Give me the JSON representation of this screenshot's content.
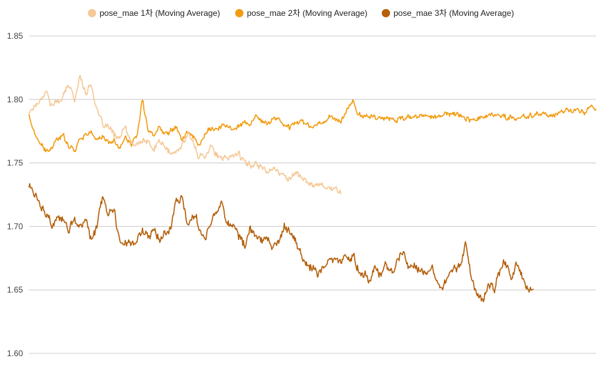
{
  "chart_data": {
    "type": "line",
    "title": "",
    "xlabel": "",
    "ylabel": "",
    "ylim": [
      1.6,
      1.85
    ],
    "yticks": [
      "1.85",
      "1.80",
      "1.75",
      "1.70",
      "1.65",
      "1.60"
    ],
    "ytick_values": [
      1.85,
      1.8,
      1.75,
      1.7,
      1.65,
      1.6
    ],
    "grid": true,
    "legend_position": "top",
    "x_range": [
      0,
      100
    ],
    "series": [
      {
        "name": "pose_mae 1차 (Moving Average)",
        "color": "#f5c998",
        "x": [
          0,
          2,
          3,
          4,
          5,
          6,
          7,
          8,
          9,
          10,
          11,
          12,
          13,
          14,
          15,
          16,
          17,
          18,
          19,
          20,
          21,
          22,
          23,
          24,
          25,
          26,
          27,
          28,
          29,
          30,
          31,
          32,
          33,
          34,
          35,
          36,
          37,
          38,
          39,
          40,
          41,
          42,
          43,
          44,
          45,
          46,
          47,
          48,
          49,
          50,
          51,
          52,
          53,
          54,
          55
        ],
        "values": [
          1.79,
          1.8,
          1.807,
          1.795,
          1.798,
          1.802,
          1.812,
          1.8,
          1.818,
          1.806,
          1.812,
          1.79,
          1.78,
          1.778,
          1.772,
          1.77,
          1.778,
          1.765,
          1.764,
          1.768,
          1.766,
          1.76,
          1.768,
          1.762,
          1.757,
          1.758,
          1.764,
          1.775,
          1.764,
          1.755,
          1.756,
          1.764,
          1.757,
          1.752,
          1.754,
          1.756,
          1.758,
          1.75,
          1.748,
          1.75,
          1.747,
          1.744,
          1.746,
          1.742,
          1.74,
          1.738,
          1.742,
          1.74,
          1.734,
          1.732,
          1.734,
          1.733,
          1.73,
          1.729,
          1.728
        ]
      },
      {
        "name": "pose_mae 2차 (Moving Average)",
        "color": "#f29c12",
        "x": [
          0,
          1,
          2,
          3,
          4,
          5,
          6,
          7,
          8,
          9,
          10,
          11,
          12,
          13,
          14,
          15,
          16,
          17,
          18,
          19,
          20,
          21,
          22,
          23,
          24,
          25,
          26,
          27,
          28,
          29,
          30,
          31,
          32,
          33,
          34,
          35,
          36,
          37,
          38,
          39,
          40,
          41,
          42,
          43,
          44,
          45,
          46,
          47,
          48,
          49,
          50,
          51,
          52,
          53,
          54,
          55,
          56,
          57,
          58,
          60,
          62,
          64,
          66,
          68,
          70,
          72,
          74,
          76,
          78,
          80,
          82,
          84,
          86,
          88,
          90,
          92,
          94,
          96,
          98,
          99,
          100
        ],
        "values": [
          1.788,
          1.772,
          1.765,
          1.758,
          1.762,
          1.768,
          1.772,
          1.764,
          1.76,
          1.77,
          1.772,
          1.774,
          1.768,
          1.771,
          1.765,
          1.768,
          1.762,
          1.77,
          1.765,
          1.77,
          1.8,
          1.775,
          1.772,
          1.778,
          1.774,
          1.776,
          1.78,
          1.768,
          1.775,
          1.77,
          1.765,
          1.772,
          1.778,
          1.776,
          1.779,
          1.778,
          1.777,
          1.78,
          1.782,
          1.78,
          1.786,
          1.783,
          1.78,
          1.785,
          1.785,
          1.78,
          1.778,
          1.782,
          1.784,
          1.78,
          1.778,
          1.781,
          1.783,
          1.786,
          1.785,
          1.783,
          1.79,
          1.8,
          1.788,
          1.787,
          1.786,
          1.784,
          1.785,
          1.786,
          1.787,
          1.786,
          1.789,
          1.788,
          1.784,
          1.786,
          1.788,
          1.786,
          1.785,
          1.787,
          1.789,
          1.787,
          1.79,
          1.792,
          1.789,
          1.795,
          1.791
        ]
      },
      {
        "name": "pose_mae 3차 (Moving Average)",
        "color": "#b5600c",
        "x": [
          0,
          1,
          2,
          3,
          4,
          5,
          6,
          7,
          8,
          9,
          10,
          11,
          12,
          13,
          14,
          15,
          16,
          17,
          18,
          19,
          20,
          21,
          22,
          23,
          24,
          25,
          26,
          27,
          28,
          29,
          30,
          31,
          32,
          33,
          34,
          35,
          36,
          37,
          38,
          39,
          40,
          41,
          42,
          43,
          44,
          45,
          46,
          47,
          48,
          49,
          50,
          51,
          52,
          53,
          54,
          55,
          56,
          57,
          58,
          59,
          60,
          61,
          62,
          63,
          64,
          65,
          66,
          67,
          68,
          69,
          70,
          71,
          72,
          73,
          74,
          75,
          76,
          77,
          78,
          79,
          80,
          81,
          82,
          83,
          84,
          85,
          86,
          87,
          88,
          89
        ],
        "values": [
          1.733,
          1.725,
          1.718,
          1.71,
          1.7,
          1.705,
          1.706,
          1.696,
          1.706,
          1.7,
          1.706,
          1.688,
          1.7,
          1.723,
          1.708,
          1.713,
          1.69,
          1.688,
          1.686,
          1.69,
          1.695,
          1.691,
          1.698,
          1.688,
          1.696,
          1.7,
          1.72,
          1.725,
          1.702,
          1.708,
          1.7,
          1.69,
          1.703,
          1.712,
          1.719,
          1.704,
          1.7,
          1.692,
          1.686,
          1.697,
          1.692,
          1.688,
          1.69,
          1.683,
          1.688,
          1.7,
          1.695,
          1.688,
          1.677,
          1.67,
          1.668,
          1.662,
          1.668,
          1.673,
          1.676,
          1.67,
          1.677,
          1.676,
          1.668,
          1.662,
          1.658,
          1.665,
          1.663,
          1.67,
          1.664,
          1.675,
          1.683,
          1.665,
          1.668,
          1.666,
          1.666,
          1.668,
          1.66,
          1.652,
          1.662,
          1.665,
          1.67,
          1.688,
          1.66,
          1.647,
          1.643,
          1.656,
          1.65,
          1.665,
          1.673,
          1.656,
          1.672,
          1.66,
          1.65,
          1.649
        ]
      }
    ]
  }
}
